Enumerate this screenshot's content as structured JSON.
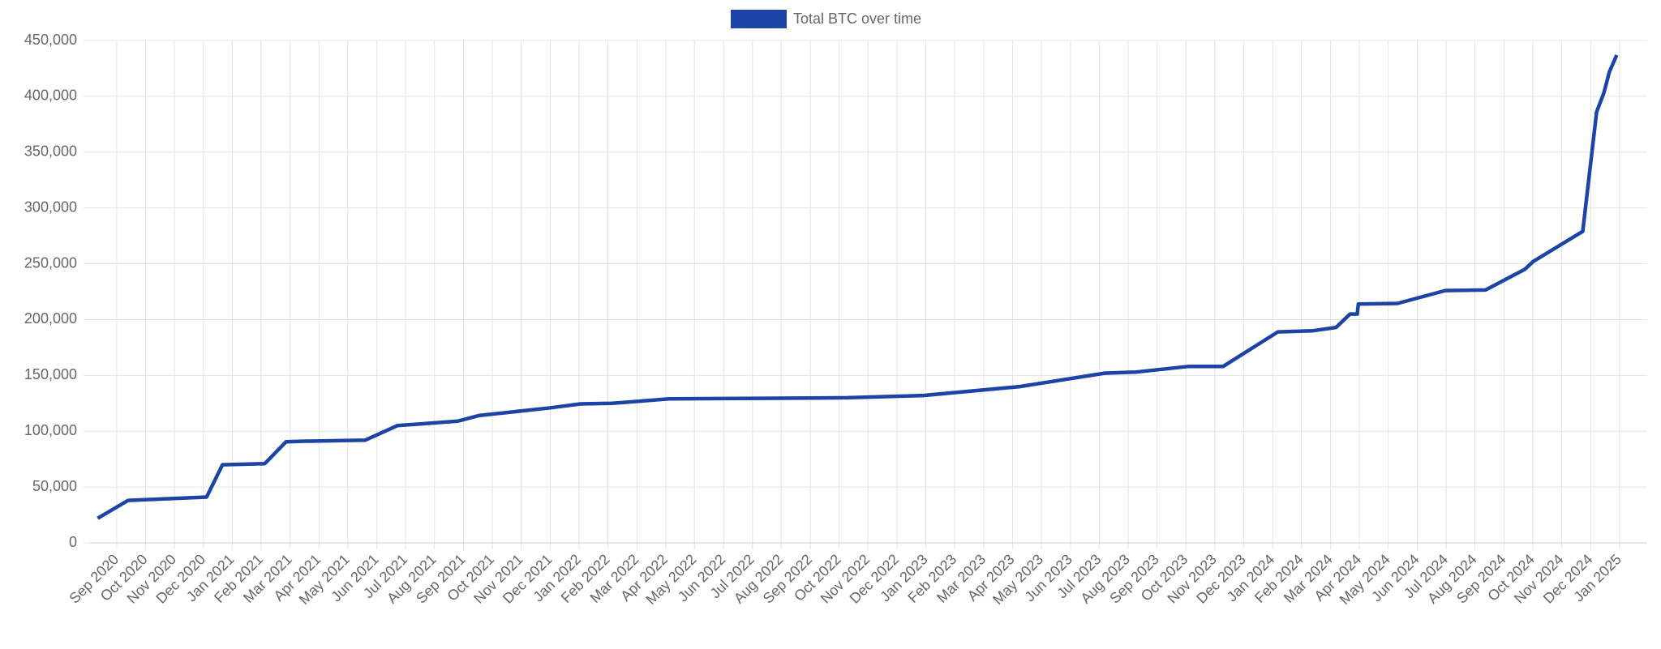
{
  "chart_data": {
    "type": "line",
    "series": [
      {
        "name": "Total BTC over time",
        "color": "#1c44a6",
        "x": [
          2020.612,
          2020.7,
          2020.926,
          2020.972,
          2021.094,
          2021.155,
          2021.201,
          2021.384,
          2021.476,
          2021.65,
          2021.711,
          2021.918,
          2022.004,
          2022.095,
          2022.26,
          2022.529,
          2022.773,
          2022.993,
          2023.271,
          2023.515,
          2023.606,
          2023.756,
          2023.857,
          2024.015,
          2024.116,
          2024.183,
          2024.223,
          2024.244,
          2024.247,
          2024.36,
          2024.498,
          2024.614,
          2024.727,
          2024.751,
          2024.894,
          2024.934,
          2024.955,
          2024.971,
          2024.992
        ],
        "values": [
          22000,
          38000,
          41000,
          70000,
          71000,
          90500,
          91000,
          92000,
          105000,
          109000,
          114000,
          121000,
          124500,
          125000,
          129000,
          129500,
          130000,
          132000,
          140000,
          152000,
          153000,
          158000,
          158000,
          189000,
          190000,
          193000,
          205000,
          205000,
          214000,
          214500,
          226000,
          226500,
          245000,
          252000,
          279000,
          386000,
          403000,
          422000,
          437000
        ]
      }
    ],
    "xlim": [
      2020.59,
      2025.08
    ],
    "ylim": [
      0,
      450000
    ],
    "yticks": [
      0,
      {
        "value": 50000,
        "label": "50,000"
      },
      {
        "value": 100000,
        "label": "100,000"
      },
      {
        "value": 150000,
        "label": "150,000"
      },
      {
        "value": 200000,
        "label": "200,000"
      },
      {
        "value": 250000,
        "label": "250,000"
      },
      {
        "value": 300000,
        "label": "300,000"
      },
      {
        "value": 350000,
        "label": "350,000"
      },
      {
        "value": 400000,
        "label": "400,000"
      },
      {
        "value": 450000,
        "label": "450,000"
      }
    ],
    "xticks": [
      {
        "value": 2020.667,
        "label": "Sep 2020"
      },
      {
        "value": 2020.75,
        "label": "Oct 2020"
      },
      {
        "value": 2020.833,
        "label": "Nov 2020"
      },
      {
        "value": 2020.917,
        "label": "Dec 2020"
      },
      {
        "value": 2021,
        "label": "Jan 2021"
      },
      {
        "value": 2021.083,
        "label": "Feb 2021"
      },
      {
        "value": 2021.167,
        "label": "Mar 2021"
      },
      {
        "value": 2021.25,
        "label": "Apr 2021"
      },
      {
        "value": 2021.333,
        "label": "May 2021"
      },
      {
        "value": 2021.417,
        "label": "Jun 2021"
      },
      {
        "value": 2021.5,
        "label": "Jul 2021"
      },
      {
        "value": 2021.583,
        "label": "Aug 2021"
      },
      {
        "value": 2021.667,
        "label": "Sep 2021"
      },
      {
        "value": 2021.75,
        "label": "Oct 2021"
      },
      {
        "value": 2021.833,
        "label": "Nov 2021"
      },
      {
        "value": 2021.917,
        "label": "Dec 2021"
      },
      {
        "value": 2022,
        "label": "Jan 2022"
      },
      {
        "value": 2022.083,
        "label": "Feb 2022"
      },
      {
        "value": 2022.167,
        "label": "Mar 2022"
      },
      {
        "value": 2022.25,
        "label": "Apr 2022"
      },
      {
        "value": 2022.333,
        "label": "May 2022"
      },
      {
        "value": 2022.417,
        "label": "Jun 2022"
      },
      {
        "value": 2022.5,
        "label": "Jul 2022"
      },
      {
        "value": 2022.583,
        "label": "Aug 2022"
      },
      {
        "value": 2022.667,
        "label": "Sep 2022"
      },
      {
        "value": 2022.75,
        "label": "Oct 2022"
      },
      {
        "value": 2022.833,
        "label": "Nov 2022"
      },
      {
        "value": 2022.917,
        "label": "Dec 2022"
      },
      {
        "value": 2023,
        "label": "Jan 2023"
      },
      {
        "value": 2023.083,
        "label": "Feb 2023"
      },
      {
        "value": 2023.167,
        "label": "Mar 2023"
      },
      {
        "value": 2023.25,
        "label": "Apr 2023"
      },
      {
        "value": 2023.333,
        "label": "May 2023"
      },
      {
        "value": 2023.417,
        "label": "Jun 2023"
      },
      {
        "value": 2023.5,
        "label": "Jul 2023"
      },
      {
        "value": 2023.583,
        "label": "Aug 2023"
      },
      {
        "value": 2023.667,
        "label": "Sep 2023"
      },
      {
        "value": 2023.75,
        "label": "Oct 2023"
      },
      {
        "value": 2023.833,
        "label": "Nov 2023"
      },
      {
        "value": 2023.917,
        "label": "Dec 2023"
      },
      {
        "value": 2024,
        "label": "Jan 2024"
      },
      {
        "value": 2024.083,
        "label": "Feb 2024"
      },
      {
        "value": 2024.167,
        "label": "Mar 2024"
      },
      {
        "value": 2024.25,
        "label": "Apr 2024"
      },
      {
        "value": 2024.333,
        "label": "May 2024"
      },
      {
        "value": 2024.417,
        "label": "Jun 2024"
      },
      {
        "value": 2024.5,
        "label": "Jul 2024"
      },
      {
        "value": 2024.583,
        "label": "Aug 2024"
      },
      {
        "value": 2024.667,
        "label": "Sep 2024"
      },
      {
        "value": 2024.75,
        "label": "Oct 2024"
      },
      {
        "value": 2024.833,
        "label": "Nov 2024"
      },
      {
        "value": 2024.917,
        "label": "Dec 2024"
      },
      {
        "value": 2025,
        "label": "Jan 2025"
      }
    ],
    "grid": true,
    "legend": "top"
  }
}
